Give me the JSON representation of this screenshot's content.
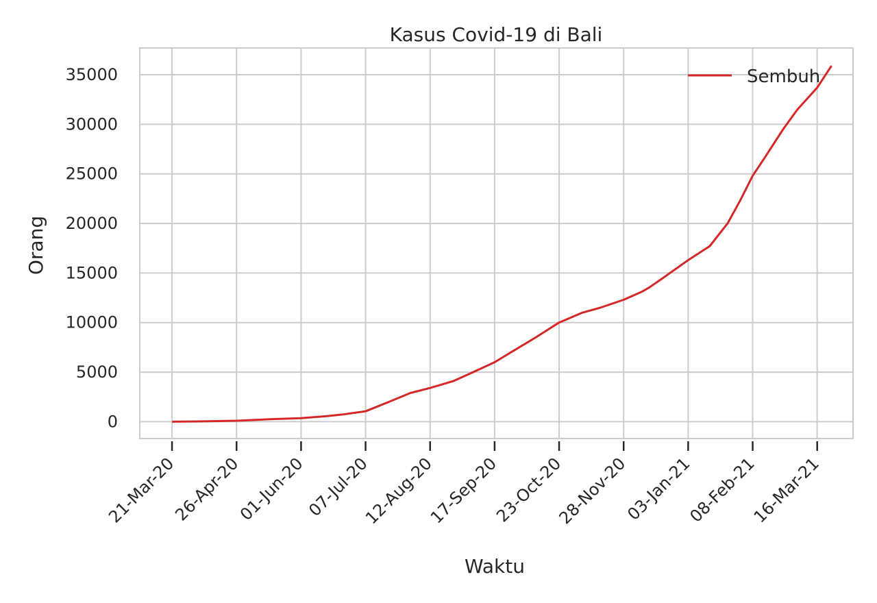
{
  "chart_data": {
    "type": "line",
    "title": "Kasus Covid-19 di Bali",
    "xlabel": "Waktu",
    "ylabel": "Orang",
    "x_ticks": [
      "21-Mar-20",
      "26-Apr-20",
      "01-Jun-20",
      "07-Jul-20",
      "12-Aug-20",
      "17-Sep-20",
      "23-Oct-20",
      "28-Nov-20",
      "03-Jan-21",
      "08-Feb-21",
      "16-Mar-21"
    ],
    "y_ticks": [
      0,
      5000,
      10000,
      15000,
      20000,
      25000,
      30000,
      35000
    ],
    "xlim": [
      "2020-03-03",
      "2021-04-05"
    ],
    "ylim": [
      -1700,
      37700
    ],
    "grid": true,
    "legend_position": "top-right",
    "colors": {
      "series": "#d62728",
      "grid": "#cccccc",
      "axes": "#cccccc",
      "tick_mark": "#262626"
    },
    "series": [
      {
        "name": "Sembuh",
        "x": [
          "2020-03-21",
          "2020-04-05",
          "2020-04-26",
          "2020-05-15",
          "2020-06-01",
          "2020-06-15",
          "2020-06-25",
          "2020-07-07",
          "2020-07-20",
          "2020-08-01",
          "2020-08-12",
          "2020-08-25",
          "2020-09-05",
          "2020-09-17",
          "2020-09-28",
          "2020-10-10",
          "2020-10-23",
          "2020-11-05",
          "2020-11-15",
          "2020-11-28",
          "2020-12-08",
          "2020-12-12",
          "2020-12-20",
          "2021-01-03",
          "2021-01-15",
          "2021-01-25",
          "2021-02-01",
          "2021-02-08",
          "2021-02-15",
          "2021-02-25",
          "2021-03-05",
          "2021-03-16",
          "2021-03-24"
        ],
        "y": [
          0,
          30,
          100,
          250,
          350,
          550,
          750,
          1050,
          2000,
          2900,
          3400,
          4100,
          5000,
          6000,
          7200,
          8500,
          10000,
          11000,
          11500,
          12300,
          13100,
          13500,
          14500,
          16300,
          17700,
          20000,
          22300,
          24800,
          26700,
          29500,
          31500,
          33700,
          35900
        ]
      }
    ]
  }
}
